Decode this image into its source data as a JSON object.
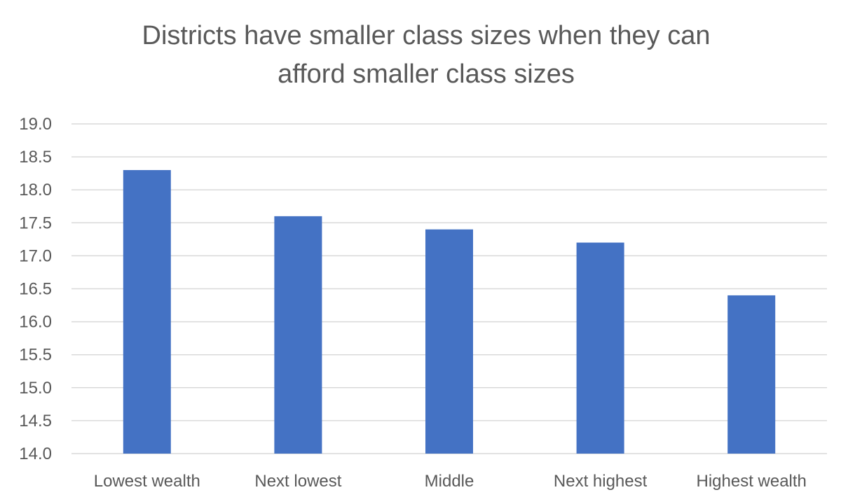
{
  "chart_data": {
    "type": "bar",
    "title_lines": [
      "Districts have smaller class sizes when they can",
      "afford smaller class sizes"
    ],
    "categories": [
      "Lowest wealth",
      "Next lowest",
      "Middle",
      "Next highest",
      "Highest wealth"
    ],
    "values": [
      18.3,
      17.6,
      17.4,
      17.2,
      16.4
    ],
    "ylim": [
      14.0,
      19.0
    ],
    "yticks": [
      "14.0",
      "14.5",
      "15.0",
      "15.5",
      "16.0",
      "16.5",
      "17.0",
      "17.5",
      "18.0",
      "18.5",
      "19.0"
    ],
    "xlabel": "",
    "ylabel": "",
    "grid": true,
    "legend": "none",
    "bar_color": "#4472c4"
  }
}
